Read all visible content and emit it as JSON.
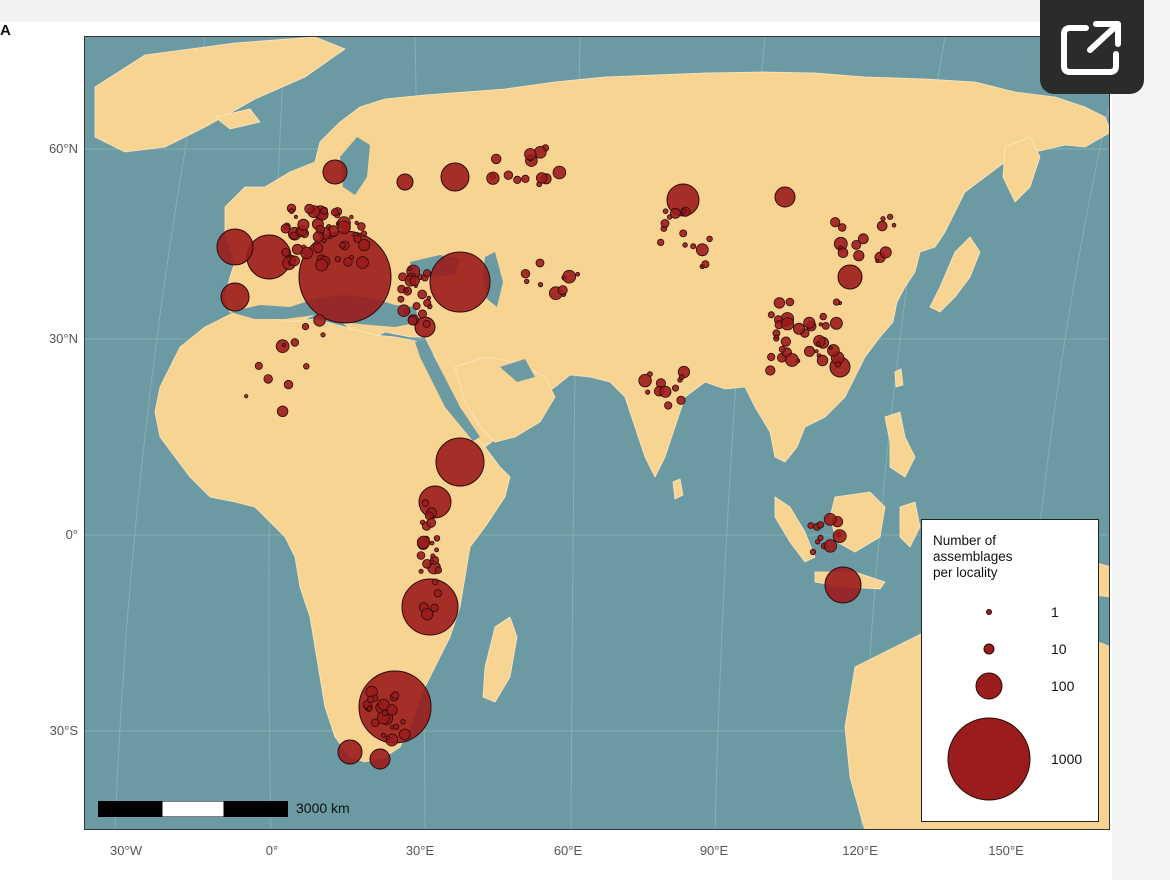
{
  "panel_label": "A",
  "map": {
    "lat_labels": [
      "60°N",
      "30°N",
      "0°",
      "30°S"
    ],
    "lon_labels": [
      "30°W",
      "0°",
      "30°E",
      "60°E",
      "90°E",
      "120°E",
      "150°E"
    ],
    "colors": {
      "ocean": "#6b9aa3",
      "land": "#f8d493",
      "points": "#9b1c1c",
      "point_stroke": "#2a0a0a"
    },
    "scale_bar_label": "3000 km"
  },
  "legend": {
    "title_lines": [
      "Number of",
      "assemblages",
      "per locality"
    ],
    "entries": [
      {
        "label": "1",
        "value": 1
      },
      {
        "label": "10",
        "value": 10
      },
      {
        "label": "100",
        "value": 100
      },
      {
        "label": "1000",
        "value": 1000
      }
    ]
  },
  "toolbar": {
    "open_external_icon": "open-external-icon"
  }
}
